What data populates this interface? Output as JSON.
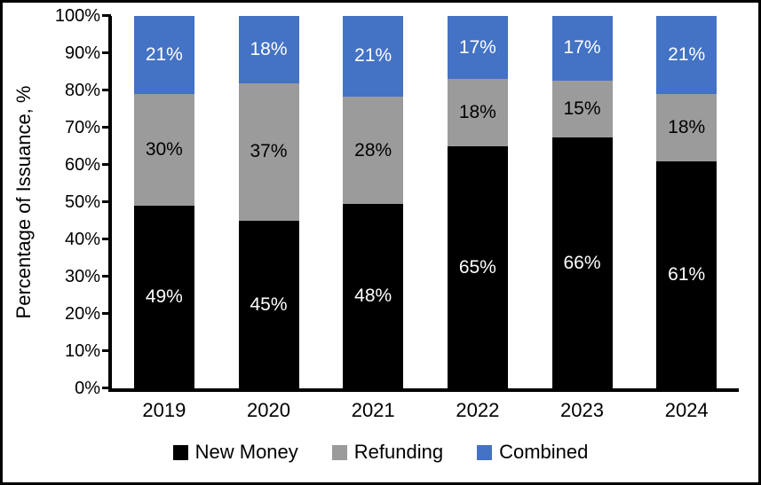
{
  "chart_data": {
    "type": "bar",
    "stacked": true,
    "title": "",
    "xlabel": "",
    "ylabel": "Percentage of Issuance, %",
    "ylim": [
      0,
      100
    ],
    "ytick_labels": [
      "0%",
      "10%",
      "20%",
      "30%",
      "40%",
      "50%",
      "60%",
      "70%",
      "80%",
      "90%",
      "100%"
    ],
    "categories": [
      "2019",
      "2020",
      "2021",
      "2022",
      "2023",
      "2024"
    ],
    "series": [
      {
        "name": "New Money",
        "color": "#000000",
        "label_color": "#ffffff",
        "values": [
          49,
          45,
          48,
          65,
          66,
          61
        ]
      },
      {
        "name": "Refunding",
        "color": "#9b9b9b",
        "label_color": "#000000",
        "values": [
          30,
          37,
          28,
          18,
          15,
          18
        ]
      },
      {
        "name": "Combined",
        "color": "#4472c4",
        "label_color": "#ffffff",
        "values": [
          21,
          18,
          21,
          17,
          17,
          21
        ]
      }
    ],
    "value_suffix": "%",
    "legend_position": "bottom",
    "grid": false
  }
}
